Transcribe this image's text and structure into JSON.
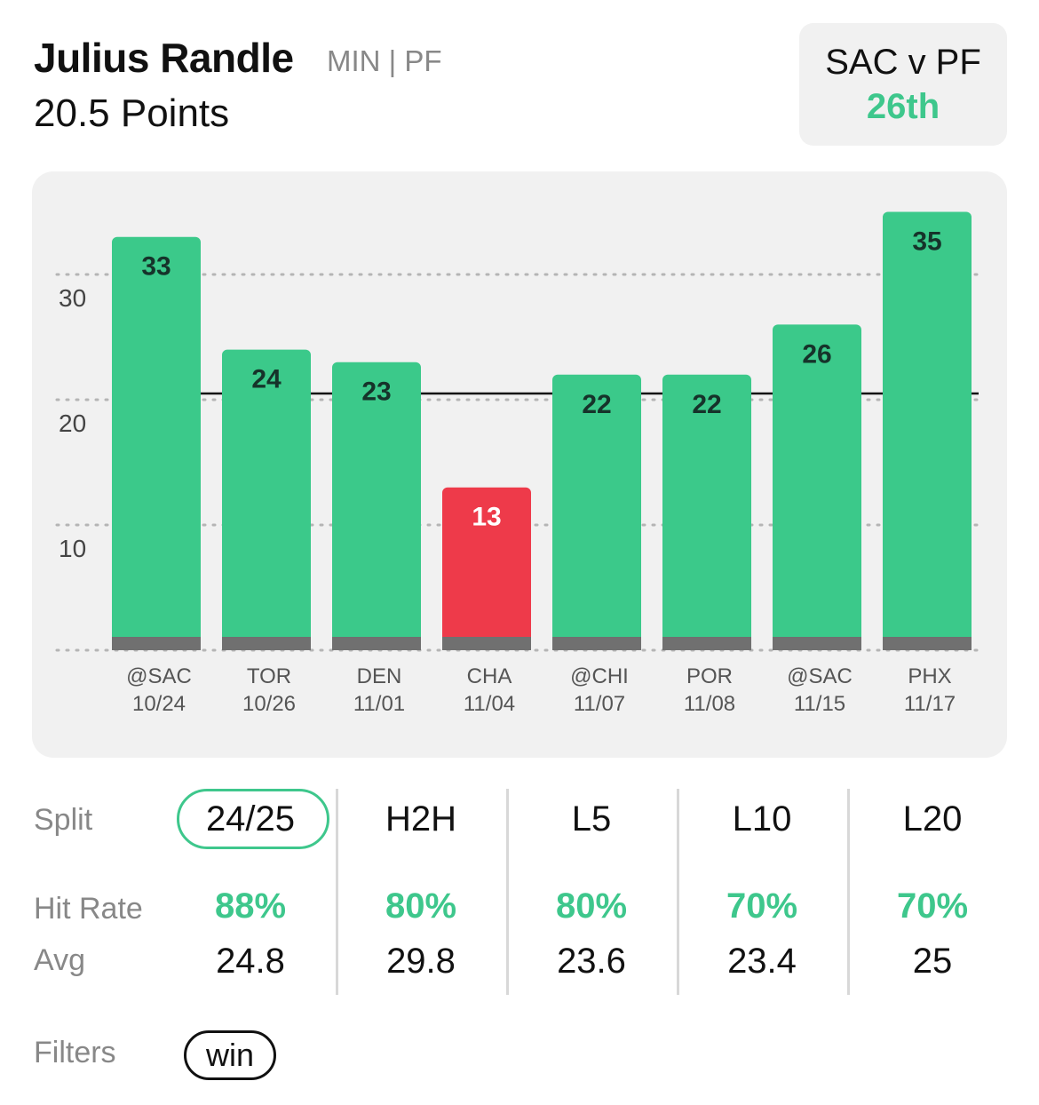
{
  "header": {
    "player_name": "Julius Randle",
    "player_meta": "MIN | PF",
    "prop_line": "20.5 Points"
  },
  "matchup": {
    "label": "SAC v PF",
    "rank": "26th"
  },
  "colors": {
    "hit": "#3bc98a",
    "miss": "#ee3a4a",
    "base": "#707070",
    "card_bg": "#f1f1f1",
    "accent_text": "#3ec78c"
  },
  "chart_data": {
    "type": "bar",
    "categories": [
      [
        "@SAC",
        "10/24"
      ],
      [
        "TOR",
        "10/26"
      ],
      [
        "DEN",
        "11/01"
      ],
      [
        "CHA",
        "11/04"
      ],
      [
        "@CHI",
        "11/07"
      ],
      [
        "POR",
        "11/08"
      ],
      [
        "@SAC",
        "11/15"
      ],
      [
        "PHX",
        "11/17"
      ]
    ],
    "values": [
      33,
      24,
      23,
      13,
      22,
      22,
      26,
      35
    ],
    "threshold": 20.5,
    "y_ticks": [
      10,
      20,
      30
    ],
    "ylim": [
      0,
      36
    ],
    "grid": "dotted horizontal",
    "title": "",
    "xlabel": "",
    "ylabel": ""
  },
  "splits": {
    "row_labels": {
      "split": "Split",
      "hit_rate": "Hit Rate",
      "avg": "Avg"
    },
    "columns": [
      {
        "name": "24/25",
        "hit_rate": "88%",
        "avg": "24.8",
        "active": true
      },
      {
        "name": "H2H",
        "hit_rate": "80%",
        "avg": "29.8",
        "active": false
      },
      {
        "name": "L5",
        "hit_rate": "80%",
        "avg": "23.6",
        "active": false
      },
      {
        "name": "L10",
        "hit_rate": "70%",
        "avg": "23.4",
        "active": false
      },
      {
        "name": "L20",
        "hit_rate": "70%",
        "avg": "25",
        "active": false
      }
    ]
  },
  "filters": {
    "label": "Filters",
    "chips": [
      "win"
    ]
  }
}
